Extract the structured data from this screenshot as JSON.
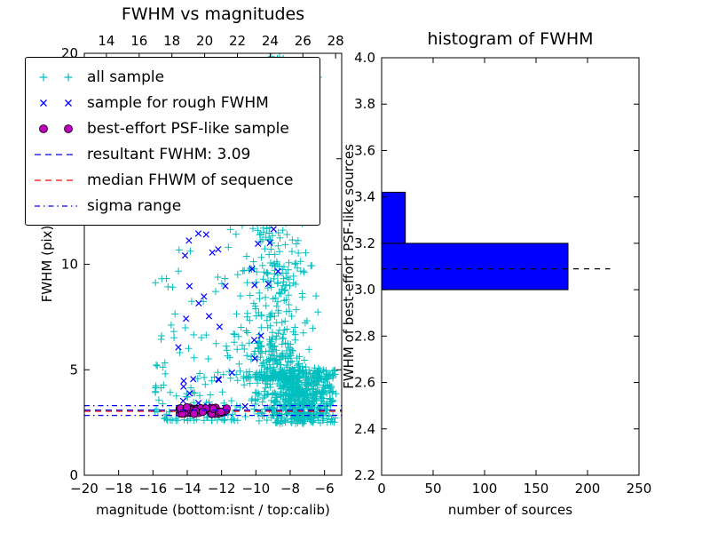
{
  "figure": {
    "background": "#ffffff"
  },
  "chart_data": [
    {
      "type": "scatter",
      "title": "FWHM vs magnitudes",
      "xlabel": "magnitude (bottom:isnt / top:calib)",
      "ylabel": "FWHM (pix)",
      "xlim": [
        -20,
        -5
      ],
      "ylim": [
        0,
        20
      ],
      "grid": false,
      "xticks": {
        "values": [
          -20,
          -18,
          -16,
          -14,
          -12,
          -10,
          -8,
          -6
        ],
        "labels": [
          "−20",
          "−18",
          "−16",
          "−14",
          "−12",
          "−10",
          "−8",
          "−6"
        ]
      },
      "yticks": {
        "values": [
          0,
          5,
          10,
          15,
          20
        ],
        "labels": [
          "0",
          "5",
          "10",
          "15",
          "20"
        ]
      },
      "top_axis": {
        "lim": [
          12.65,
          28.37
        ],
        "ticks": {
          "values": [
            14,
            16,
            18,
            20,
            22,
            24,
            26,
            28
          ],
          "labels": [
            "14",
            "16",
            "18",
            "20",
            "22",
            "24",
            "26",
            "28"
          ]
        }
      },
      "series": [
        {
          "name": "all sample",
          "marker": "plus",
          "color": "#00bfbf",
          "seed": 7,
          "clusters": [
            {
              "n": 620,
              "x": {
                "dist": "gauss",
                "mean": -7.4,
                "sd": 1.25,
                "clip": [
                  -11.2,
                  -5.3
                ]
              },
              "y": {
                "dist": "uniform",
                "min": 2.45,
                "max": 5.0
              }
            },
            {
              "n": 520,
              "x": {
                "dist": "gauss",
                "mean": -8.8,
                "sd": 0.95,
                "clip": [
                  -11.5,
                  -6.0
                ]
              },
              "y": {
                "dist": "pow",
                "min": 4.6,
                "max": 20.0,
                "pow": 2.6
              }
            },
            {
              "n": 140,
              "x": {
                "dist": "uniform",
                "min": -15.9,
                "max": -10.9
              },
              "y": {
                "dist": "pow",
                "min": 2.6,
                "max": 13.5,
                "pow": 2.8
              }
            },
            {
              "n": 55,
              "x": {
                "dist": "gauss",
                "mean": -8.4,
                "sd": 0.9,
                "clip": [
                  -10.5,
                  -6.3
                ]
              },
              "y": {
                "dist": "uniform",
                "min": 12.0,
                "max": 20.0
              }
            }
          ]
        },
        {
          "name": "sample for rough FWHM",
          "marker": "x",
          "color": "#0000ff",
          "seed": 13,
          "clusters": [
            {
              "n": 26,
              "x": {
                "dist": "uniform",
                "min": -14.6,
                "max": -10.3
              },
              "y": {
                "dist": "pow",
                "min": 3.1,
                "max": 13.0,
                "pow": 1.9
              }
            },
            {
              "n": 10,
              "x": {
                "dist": "uniform",
                "min": -10.3,
                "max": -8.7
              },
              "y": {
                "dist": "pow",
                "min": 4.5,
                "max": 12.0,
                "pow": 1.4
              }
            },
            {
              "n": 9,
              "x": {
                "dist": "uniform",
                "min": -14.4,
                "max": -12.0
              },
              "y": {
                "dist": "uniform",
                "min": 10.2,
                "max": 13.2
              }
            }
          ]
        },
        {
          "name": "best-effort PSF-like sample",
          "marker": "circle",
          "color": "#bf00bf",
          "edge_color": "#000000",
          "seed": 99,
          "clusters": [
            {
              "n": 55,
              "x": {
                "dist": "pow",
                "min": -14.45,
                "max": -11.7,
                "pow": 1.15
              },
              "y": {
                "dist": "uniform",
                "min": 2.9,
                "max": 3.22
              }
            }
          ]
        }
      ],
      "hlines": [
        {
          "label": "resultant FWHM: 3.09",
          "y": 3.09,
          "color": "#0000ff",
          "style": "dashed"
        },
        {
          "label": "median FHWM of sequence",
          "y": 3.03,
          "color": "#ff0000",
          "style": "dashed"
        },
        {
          "label": "sigma range upper",
          "y": 3.3,
          "color": "#0000ff",
          "style": "dashdot"
        },
        {
          "label": "sigma range lower",
          "y": 2.84,
          "color": "#0000ff",
          "style": "dashdot"
        }
      ],
      "legend": {
        "position": "upper left",
        "items": [
          {
            "marker": "plus",
            "color": "#00bfbf",
            "label": "all sample"
          },
          {
            "marker": "x",
            "color": "#0000ff",
            "label": "sample for rough FWHM"
          },
          {
            "marker": "circle",
            "color": "#bf00bf",
            "edge_color": "#000000",
            "label": "best-effort PSF-like sample"
          },
          {
            "marker": "line-dashed",
            "color": "#0000ff",
            "label": "resultant FWHM: 3.09"
          },
          {
            "marker": "line-dashed",
            "color": "#ff0000",
            "label": "median FHWM of sequence"
          },
          {
            "marker": "line-dashdot",
            "color": "#0000ff",
            "label": "sigma range"
          }
        ]
      }
    },
    {
      "type": "bar",
      "orientation": "horizontal",
      "title": "histogram of FWHM",
      "xlabel": "number of sources",
      "ylabel": "FWHM of best-effort PSF-like sources",
      "xlim": [
        0,
        250
      ],
      "ylim": [
        2.2,
        4.0
      ],
      "grid": false,
      "xticks": {
        "values": [
          0,
          50,
          100,
          150,
          200,
          250
        ],
        "labels": [
          "0",
          "50",
          "100",
          "150",
          "200",
          "250"
        ]
      },
      "yticks": {
        "values": [
          2.2,
          2.4,
          2.6,
          2.8,
          3.0,
          3.2,
          3.4,
          3.6,
          3.8,
          4.0
        ],
        "labels": [
          "2.2",
          "2.4",
          "2.6",
          "2.8",
          "3.0",
          "3.2",
          "3.4",
          "3.6",
          "3.8",
          "4.0"
        ]
      },
      "bar_color": "#0000ff",
      "bar_edge_color": "#000000",
      "bars": [
        {
          "fwhm_from": 3.0,
          "fwhm_to": 3.2,
          "count": 181
        },
        {
          "fwhm_from": 3.2,
          "fwhm_to": 3.42,
          "count": 23
        }
      ],
      "median_line": {
        "y": 3.09,
        "x_from": 0,
        "x_to": 222,
        "color": "#000000",
        "style": "dashed"
      }
    }
  ]
}
